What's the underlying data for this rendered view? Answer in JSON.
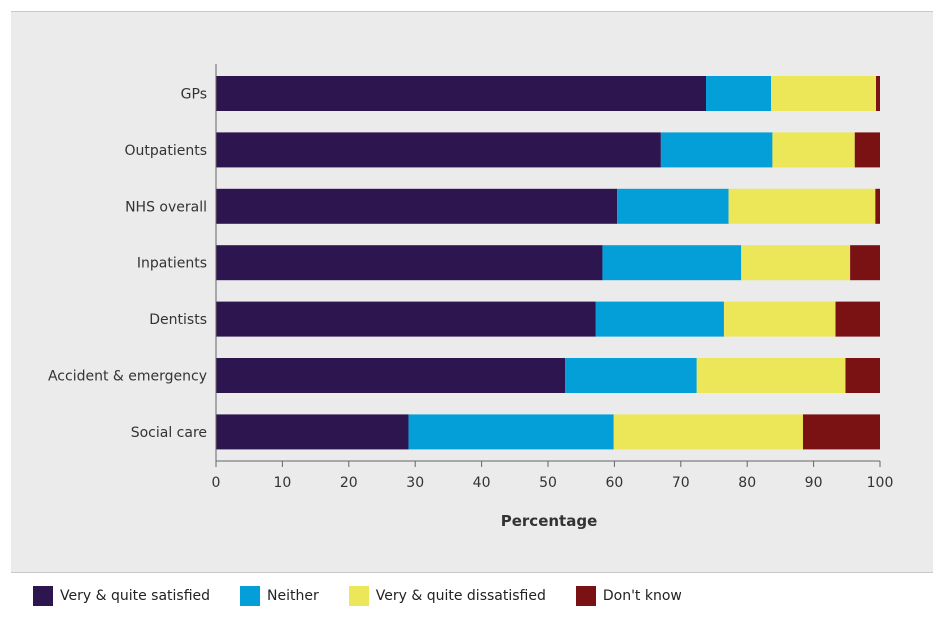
{
  "chart_data": {
    "type": "bar",
    "orientation": "horizontal",
    "stacked": true,
    "title": "",
    "xlabel": "Percentage",
    "ylabel": "",
    "xlim": [
      0,
      100
    ],
    "x_ticks": [
      "0",
      "10",
      "20",
      "30",
      "40",
      "50",
      "60",
      "70",
      "80",
      "90",
      "100"
    ],
    "categories": [
      "GPs",
      "Outpatients",
      "NHS overall",
      "Inpatients",
      "Dentists",
      "Accident & emergency",
      "Social care"
    ],
    "series": [
      {
        "name": "Very & quite satisfied",
        "color": "#2d1650",
        "values": [
          73.8,
          67.0,
          60.4,
          58.2,
          57.2,
          52.6,
          29.0
        ]
      },
      {
        "name": "Neither",
        "color": "#049fd9",
        "values": [
          9.8,
          16.8,
          16.8,
          20.9,
          19.3,
          19.8,
          30.9
        ]
      },
      {
        "name": "Very & quite dissatisfied",
        "color": "#ece659",
        "values": [
          15.8,
          12.4,
          22.1,
          16.4,
          16.8,
          22.4,
          28.5
        ]
      },
      {
        "name": "Don't know",
        "color": "#7a1214",
        "values": [
          0.6,
          3.8,
          0.7,
          4.5,
          6.7,
          5.2,
          11.6
        ]
      }
    ],
    "legend_position": "bottom",
    "grid": false
  }
}
